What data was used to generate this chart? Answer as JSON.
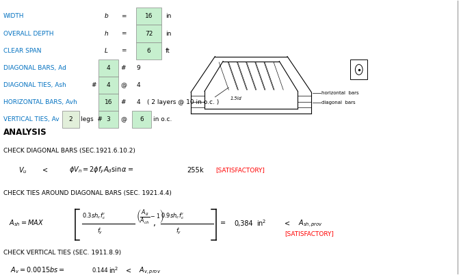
{
  "bg_color": "#ffffff",
  "green_fill": "#c6efce",
  "light_green": "#e2efda",
  "blue_text": "#0070c0",
  "labels_top": [
    "WIDTH",
    "OVERALL DEPTH",
    "CLEAR SPAN"
  ],
  "vars_top": [
    "b",
    "h",
    "L"
  ],
  "vals_top": [
    "16",
    "72",
    "6"
  ],
  "units_top": [
    "in",
    "in",
    "ft"
  ],
  "bar_labels": [
    "DIAGONAL BARS, Ad",
    "DIAGONAL TIES, Ash",
    "HORIZONTAL BARS, Avh",
    "VERTICAL TIES, Av"
  ],
  "analysis_title": "ANALYSIS",
  "check1": "CHECK DIAGONAL BARS (SEC.1921.6.10.2)",
  "check2": "CHECK TIES AROUND DIAGONAL BARS (SEC. 1921.4.4)",
  "check3": "CHECK VERTICAL TIES (SEC. 1911.8.9)",
  "val_255": "255",
  "val_384": "0,384",
  "val_144": "0.144",
  "satisfactory_color": "#ff0000",
  "orange_text": "#ff6600"
}
